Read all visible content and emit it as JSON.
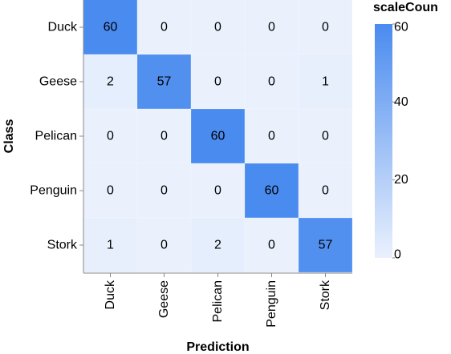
{
  "chart_data": {
    "type": "heatmap",
    "xlabel": "Prediction",
    "ylabel": "Class",
    "x_categories": [
      "Duck",
      "Geese",
      "Pelican",
      "Penguin",
      "Stork"
    ],
    "y_categories": [
      "Duck",
      "Geese",
      "Pelican",
      "Penguin",
      "Stork"
    ],
    "values": [
      [
        60,
        0,
        0,
        0,
        0
      ],
      [
        2,
        57,
        0,
        0,
        1
      ],
      [
        0,
        0,
        60,
        0,
        0
      ],
      [
        0,
        0,
        0,
        60,
        0
      ],
      [
        1,
        0,
        2,
        0,
        57
      ]
    ],
    "legend": {
      "title": "scaleCoun",
      "ticks": [
        0,
        20,
        40,
        60
      ],
      "domain": [
        0,
        60
      ],
      "placement": "right"
    },
    "colors": {
      "low": "#eaf1fd",
      "high": "#4a8bef"
    }
  }
}
